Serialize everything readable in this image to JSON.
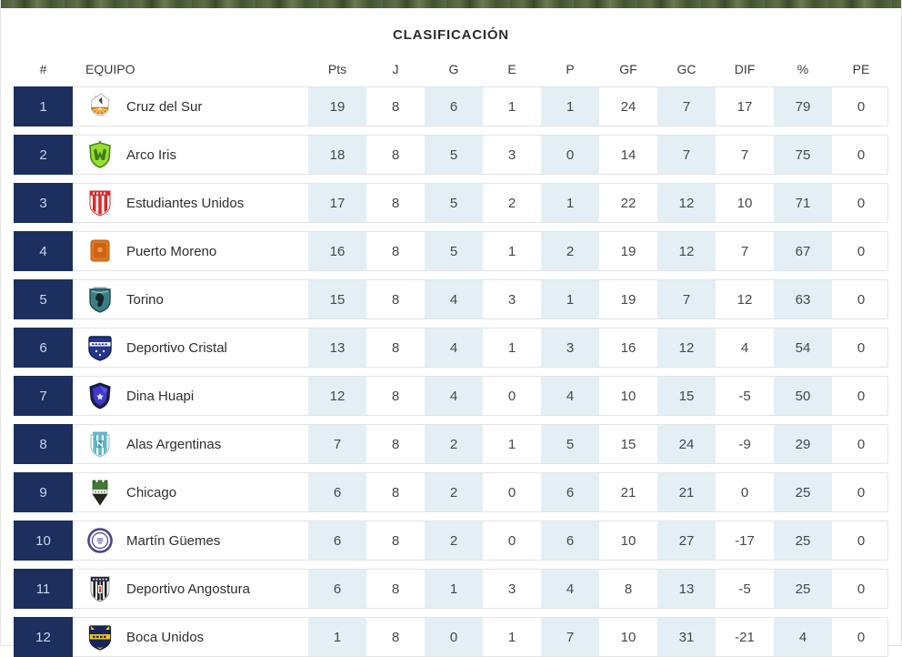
{
  "page": {
    "title": "CLASIFICACIÓN"
  },
  "table": {
    "columns": [
      {
        "label": "#"
      },
      {
        "label": "EQUIPO"
      },
      {
        "label": "Pts"
      },
      {
        "label": "J"
      },
      {
        "label": "G"
      },
      {
        "label": "E"
      },
      {
        "label": "P"
      },
      {
        "label": "GF"
      },
      {
        "label": "GC"
      },
      {
        "label": "DIF"
      },
      {
        "label": "%"
      },
      {
        "label": "PE"
      }
    ],
    "rows": [
      {
        "rank": "1",
        "team": "Cruz del Sur",
        "badge": "cruz-del-sur-badge",
        "stats": [
          "19",
          "8",
          "6",
          "1",
          "1",
          "24",
          "7",
          "17",
          "79",
          "0"
        ]
      },
      {
        "rank": "2",
        "team": "Arco Iris",
        "badge": "arco-iris-badge",
        "stats": [
          "18",
          "8",
          "5",
          "3",
          "0",
          "14",
          "7",
          "7",
          "75",
          "0"
        ]
      },
      {
        "rank": "3",
        "team": "Estudiantes Unidos",
        "badge": "estudiantes-unidos-badge",
        "stats": [
          "17",
          "8",
          "5",
          "2",
          "1",
          "22",
          "12",
          "10",
          "71",
          "0"
        ]
      },
      {
        "rank": "4",
        "team": "Puerto Moreno",
        "badge": "puerto-moreno-badge",
        "stats": [
          "16",
          "8",
          "5",
          "1",
          "2",
          "19",
          "12",
          "7",
          "67",
          "0"
        ]
      },
      {
        "rank": "5",
        "team": "Torino",
        "badge": "torino-badge",
        "stats": [
          "15",
          "8",
          "4",
          "3",
          "1",
          "19",
          "7",
          "12",
          "63",
          "0"
        ]
      },
      {
        "rank": "6",
        "team": "Deportivo Cristal",
        "badge": "deportivo-cristal-badge",
        "stats": [
          "13",
          "8",
          "4",
          "1",
          "3",
          "16",
          "12",
          "4",
          "54",
          "0"
        ]
      },
      {
        "rank": "7",
        "team": "Dina Huapi",
        "badge": "dina-huapi-badge",
        "stats": [
          "12",
          "8",
          "4",
          "0",
          "4",
          "10",
          "15",
          "-5",
          "50",
          "0"
        ]
      },
      {
        "rank": "8",
        "team": "Alas Argentinas",
        "badge": "alas-argentinas-badge",
        "stats": [
          "7",
          "8",
          "2",
          "1",
          "5",
          "15",
          "24",
          "-9",
          "29",
          "0"
        ]
      },
      {
        "rank": "9",
        "team": "Chicago",
        "badge": "chicago-badge",
        "stats": [
          "6",
          "8",
          "2",
          "0",
          "6",
          "21",
          "21",
          "0",
          "25",
          "0"
        ]
      },
      {
        "rank": "10",
        "team": "Martín Güemes",
        "badge": "martin-guemes-badge",
        "stats": [
          "6",
          "8",
          "2",
          "0",
          "6",
          "10",
          "27",
          "-17",
          "25",
          "0"
        ]
      },
      {
        "rank": "11",
        "team": "Deportivo Angostura",
        "badge": "deportivo-angostura-badge",
        "stats": [
          "6",
          "8",
          "1",
          "3",
          "4",
          "8",
          "13",
          "-5",
          "25",
          "0"
        ]
      },
      {
        "rank": "12",
        "team": "Boca Unidos",
        "badge": "boca-unidos-badge",
        "stats": [
          "1",
          "8",
          "0",
          "1",
          "7",
          "10",
          "31",
          "-21",
          "4",
          "0"
        ]
      }
    ]
  },
  "colors": {
    "rank_bg": "#1c2f5e",
    "rank_text": "#ccd6ea",
    "cell_alt_bg": "#e3eff5",
    "row_border": "#e4e4e4",
    "grass_green": "#4a5a39"
  }
}
